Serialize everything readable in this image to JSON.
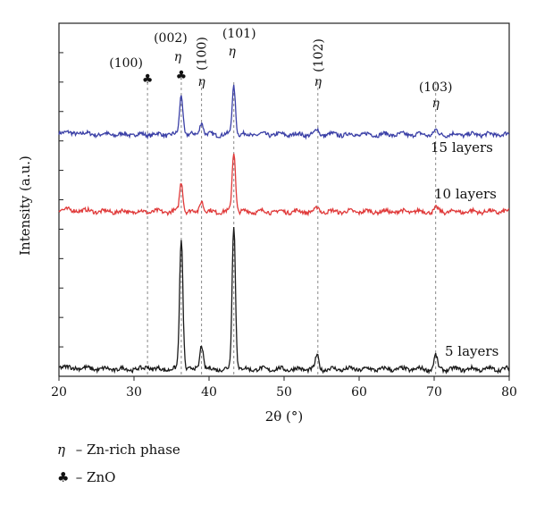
{
  "chart_data": {
    "type": "line",
    "xlabel": "2θ (°)",
    "ylabel": "Intensity (a.u.)",
    "xlim": [
      20,
      80
    ],
    "xticks": [
      "20",
      "30",
      "40",
      "50",
      "60",
      "70",
      "80"
    ],
    "grid": false,
    "series": [
      {
        "name": "15 layers",
        "color": "#3a3fa6",
        "baseline": 0.7,
        "peaks": [
          [
            36.3,
            0.12
          ],
          [
            39.0,
            0.04
          ],
          [
            43.3,
            0.145
          ],
          [
            54.4,
            0.015
          ],
          [
            70.2,
            0.012
          ]
        ]
      },
      {
        "name": "10 layers",
        "color": "#e03a3a",
        "baseline": 0.47,
        "peaks": [
          [
            36.3,
            0.09
          ],
          [
            39.0,
            0.035
          ],
          [
            43.3,
            0.18
          ],
          [
            54.5,
            0.012
          ],
          [
            70.3,
            0.01
          ]
        ]
      },
      {
        "name": "5 layers",
        "color": "#1a1a1a",
        "baseline": 0.0,
        "peaks": [
          [
            31.8,
            0.012
          ],
          [
            36.3,
            0.39
          ],
          [
            39.0,
            0.075
          ],
          [
            43.3,
            0.43
          ],
          [
            54.4,
            0.04
          ],
          [
            70.2,
            0.04
          ]
        ]
      }
    ],
    "reference_lines": [
      31.8,
      36.3,
      39.0,
      43.3,
      54.5,
      70.2
    ],
    "annotations": [
      {
        "x": 31.8,
        "label": "(100)",
        "symbol": "♣"
      },
      {
        "x": 36.3,
        "label": "(002)",
        "symbol": "η",
        "symbol2": "♣"
      },
      {
        "x": 39.0,
        "label": "(100)",
        "symbol": "η",
        "vertical": true
      },
      {
        "x": 43.3,
        "label": "(101)",
        "symbol": "η"
      },
      {
        "x": 54.5,
        "label": "(102)",
        "symbol": "η",
        "vertical": true
      },
      {
        "x": 70.2,
        "label": "(103)",
        "symbol": "η"
      }
    ],
    "series_labels": [
      "15 layers",
      "10 layers",
      "5 layers"
    ]
  },
  "legend": {
    "eta_symbol": "η",
    "eta_text": " – Zn-rich phase",
    "club_symbol": "♣",
    "club_text": " – ZnO"
  }
}
